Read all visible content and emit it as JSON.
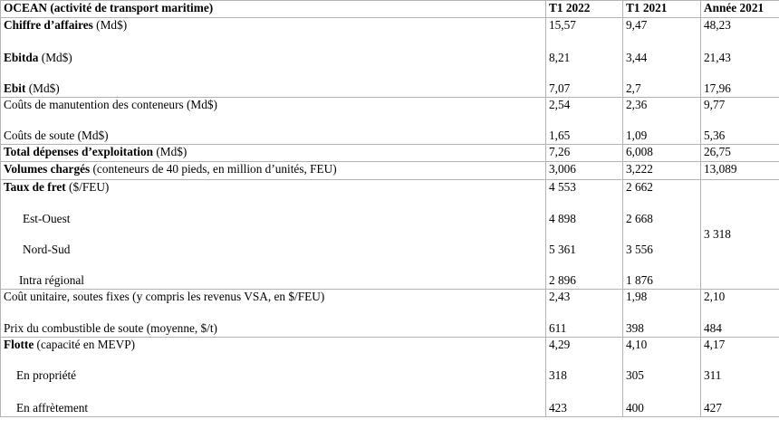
{
  "header": {
    "label": "OCEAN (activité de transport maritime)",
    "col1": "T1 2022",
    "col2": "T1 2021",
    "col3": "Année 2021"
  },
  "rows": {
    "ca": {
      "bold": "Chiffre d’affaires",
      "unit": " (Md$)",
      "v1": "15,57",
      "v2": "9,47",
      "v3": "48,23"
    },
    "ebitda": {
      "bold": "Ebitda",
      "unit": " (Md$)",
      "v1": "8,21",
      "v2": "3,44",
      "v3": "21,43"
    },
    "ebit": {
      "bold": "Ebit",
      "unit": " (Md$)",
      "v1": "7,07",
      "v2": "2,7",
      "v3": "17,96"
    },
    "manut": {
      "label": "Coûts de manutention des conteneurs (Md$)",
      "v1": "2,54",
      "v2": "2,36",
      "v3": "9,77"
    },
    "soute": {
      "label": "Coûts de soute (Md$)",
      "v1": "1,65",
      "v2": "1,09",
      "v3": "5,36"
    },
    "totdep": {
      "bold": "Total dépenses d’exploitation",
      "unit": " (Md$)",
      "v1": "7,26",
      "v2": "6,008",
      "v3": "26,75"
    },
    "volumes": {
      "bold": "Volumes chargés",
      "unit": " (conteneurs de 40 pieds, en million d’unités, FEU)",
      "v1": "3,006",
      "v2": "3,222",
      "v3": "13,089"
    },
    "taux": {
      "bold": "Taux de fret",
      "unit": " ($/FEU)",
      "v1": "4 553",
      "v2": "2 662",
      "v3": "3 318"
    },
    "estouest": {
      "label": "Est-Ouest",
      "v1": "4 898",
      "v2": "2 668"
    },
    "nordsud": {
      "label": "Nord-Sud",
      "v1": "5 361",
      "v2": "3 556"
    },
    "intra": {
      "label": "Intra régional",
      "v1": "2 896",
      "v2": "1 876"
    },
    "coutunit": {
      "label": "Coût unitaire, soutes fixes (y compris les revenus VSA, en $/FEU)",
      "v1": "2,43",
      "v2": "1,98",
      "v3": "2,10"
    },
    "prixcomb": {
      "label": "Prix du combustible de soute (moyenne, $/t)",
      "v1": "611",
      "v2": "398",
      "v3": "484"
    },
    "flotte": {
      "bold": "Flotte",
      "unit": " (capacité en MEVP)",
      "v1": "4,29",
      "v2": "4,10",
      "v3": "4,17"
    },
    "propriete": {
      "label": "En propriété",
      "v1": "318",
      "v2": "305",
      "v3": "311"
    },
    "affretement": {
      "label": "En affrètement",
      "v1": "423",
      "v2": "400",
      "v3": "427"
    }
  }
}
